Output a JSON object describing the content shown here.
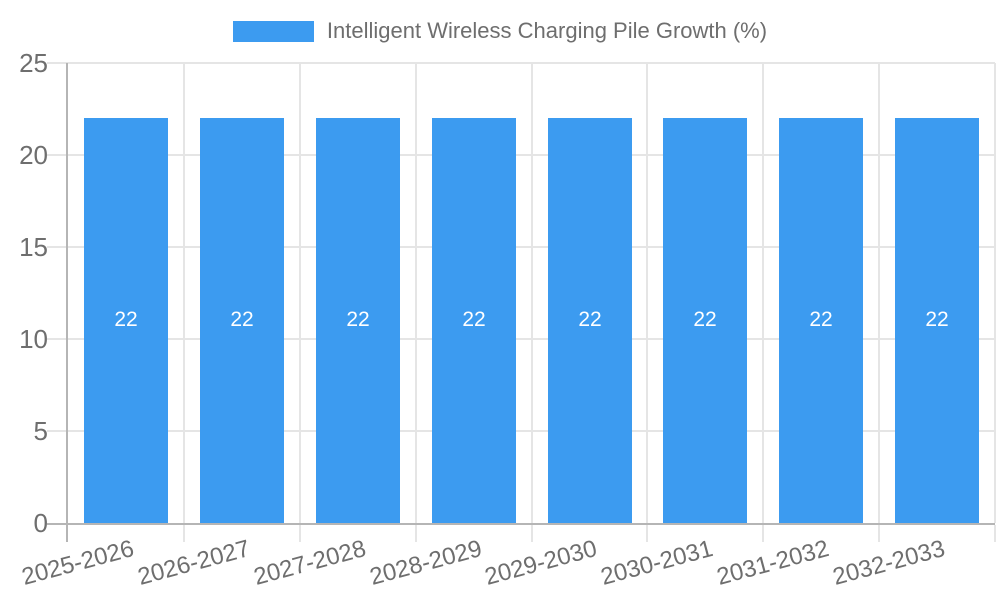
{
  "chart_data": {
    "type": "bar",
    "title": "",
    "categories": [
      "2025-2026",
      "2026-2027",
      "2027-2028",
      "2028-2029",
      "2029-2030",
      "2030-2031",
      "2031-2032",
      "2032-2033"
    ],
    "series": [
      {
        "name": "Intelligent Wireless Charging Pile Growth (%)",
        "values": [
          22,
          22,
          22,
          22,
          22,
          22,
          22,
          22
        ]
      }
    ],
    "value_labels": [
      "22",
      "22",
      "22",
      "22",
      "22",
      "22",
      "22",
      "22"
    ],
    "xlabel": "",
    "ylabel": "",
    "ylim": [
      0,
      25
    ],
    "yticks": [
      0,
      5,
      10,
      15,
      20,
      25
    ],
    "grid": true,
    "legend_position": "top-center",
    "colors": {
      "bar": "#3c9bf0",
      "grid_line": "#e5e5e5",
      "axis_line": "#b5b5b5",
      "axis_text": "#6e6e6e",
      "value_label_text": "#ffffff",
      "background": "#ffffff"
    }
  }
}
